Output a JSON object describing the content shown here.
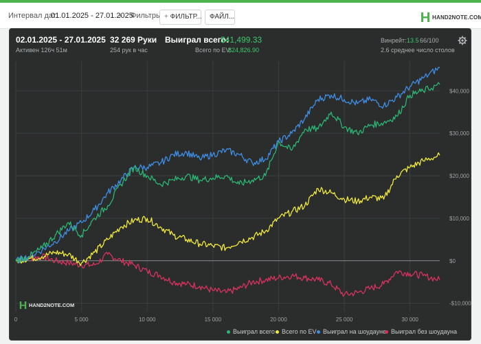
{
  "toolbar": {
    "interval_label": "Интервал дат:",
    "interval_value": "01.01.2025 - 27.01.2025",
    "filters_label": "Фильтры:",
    "filter_button": "ФИЛЬТР...",
    "file_button": "ФАЙЛ...",
    "brand": "HAND2NOTE.COM"
  },
  "summary": {
    "date_range": "02.01.2025 - 27.01.2025",
    "active": "Активен 126ч 51м",
    "hands": "32 269 Руки",
    "hands_per_hour": "254 рук в час",
    "won_total_label": "Выиграл всего:",
    "won_total_value": "$41,499.33",
    "ev_label": "Всего по EV:",
    "ev_value": "$24,826.90",
    "winrate_label": "Винрейт:",
    "winrate_value": "13.5",
    "winrate_unit": "66/100",
    "avg_tables": "2.6 среднее число столов"
  },
  "watermark": "HAND2NOTE.COM",
  "colors": {
    "won_total": "#2bb673",
    "ev": "#f2ea3a",
    "showdown": "#3f8ee6",
    "non_showdown": "#d9325e",
    "panel": "#2b2d2d",
    "accent": "#3cc86b"
  },
  "chart_data": {
    "type": "line",
    "xlim": [
      0,
      32269
    ],
    "ylim": [
      -12000,
      47000
    ],
    "grid": true,
    "x_ticks": [
      0,
      5000,
      10000,
      15000,
      20000,
      25000,
      30000
    ],
    "x_tick_labels": [
      "0",
      "5 000",
      "10 000",
      "15 000",
      "20 000",
      "25 000",
      "30 000"
    ],
    "y_ticks": [
      -10000,
      0,
      10000,
      20000,
      30000,
      40000
    ],
    "y_tick_labels": [
      "-$10,000",
      "$0",
      "$10,000",
      "$20,000",
      "$30,000",
      "$40,000"
    ],
    "legend_position": "bottom-right",
    "series": [
      {
        "name": "Выиграл всего",
        "color": "#2bb673",
        "x": [
          0,
          1000,
          2000,
          3000,
          4000,
          5000,
          6000,
          7000,
          8000,
          9000,
          10000,
          11000,
          12000,
          13000,
          14000,
          15000,
          16000,
          17000,
          18000,
          19000,
          20000,
          21000,
          22000,
          23000,
          24000,
          25000,
          26000,
          27000,
          28000,
          29000,
          30000,
          31000,
          32269
        ],
        "y": [
          0,
          1000,
          3000,
          6000,
          9000,
          6000,
          10000,
          13000,
          18000,
          22000,
          20000,
          18000,
          19000,
          20000,
          19000,
          19500,
          20000,
          18000,
          19000,
          20000,
          28000,
          26000,
          31000,
          31000,
          35000,
          31500,
          30000,
          32000,
          32500,
          34000,
          39000,
          40000,
          41499
        ]
      },
      {
        "name": "Всего по EV",
        "color": "#f2ea3a",
        "x": [
          0,
          1000,
          2000,
          3000,
          4000,
          5000,
          6000,
          7000,
          8000,
          9000,
          10000,
          11000,
          12000,
          13000,
          14000,
          15000,
          16000,
          17000,
          18000,
          19000,
          20000,
          21000,
          22000,
          23000,
          24000,
          25000,
          26000,
          27000,
          28000,
          29000,
          30000,
          31000,
          32269
        ],
        "y": [
          0,
          500,
          1000,
          2000,
          1500,
          -500,
          2000,
          5000,
          8000,
          9500,
          10000,
          8000,
          6000,
          5000,
          4000,
          3500,
          3000,
          4500,
          5500,
          7000,
          10000,
          11500,
          13000,
          17000,
          16000,
          14500,
          14000,
          15000,
          14500,
          20000,
          22000,
          23500,
          24827
        ]
      },
      {
        "name": "Выиграл на шоудауне",
        "color": "#3f8ee6",
        "x": [
          0,
          1000,
          2000,
          3000,
          4000,
          5000,
          6000,
          7000,
          8000,
          9000,
          10000,
          11000,
          12000,
          13000,
          14000,
          15000,
          16000,
          17000,
          18000,
          19000,
          20000,
          21000,
          22000,
          23000,
          24000,
          25000,
          26000,
          27000,
          28000,
          29000,
          30000,
          31000,
          32269
        ],
        "y": [
          0,
          1000,
          2500,
          4500,
          7000,
          9000,
          12000,
          16000,
          19000,
          22000,
          22000,
          23000,
          25000,
          25500,
          24000,
          25000,
          26000,
          25000,
          23000,
          24000,
          28000,
          30000,
          33500,
          38000,
          39000,
          38000,
          37000,
          38000,
          36500,
          38500,
          41000,
          43000,
          45500
        ]
      },
      {
        "name": "Выиграл без шоудауна",
        "color": "#d9325e",
        "x": [
          0,
          1000,
          2000,
          3000,
          4000,
          5000,
          6000,
          7000,
          8000,
          9000,
          10000,
          11000,
          12000,
          13000,
          14000,
          15000,
          16000,
          17000,
          18000,
          19000,
          20000,
          21000,
          22000,
          23000,
          24000,
          25000,
          26000,
          27000,
          28000,
          29000,
          30000,
          31000,
          32269
        ],
        "y": [
          0,
          500,
          1000,
          0,
          -500,
          -1000,
          -1000,
          1500,
          0,
          -1000,
          -2500,
          -3500,
          -5000,
          -5500,
          -6000,
          -7000,
          -7500,
          -6500,
          -5000,
          -4500,
          -4000,
          -3500,
          -4000,
          -4500,
          -5500,
          -8000,
          -7500,
          -6500,
          -5500,
          -2500,
          -3000,
          -3500,
          -4500
        ]
      }
    ]
  }
}
